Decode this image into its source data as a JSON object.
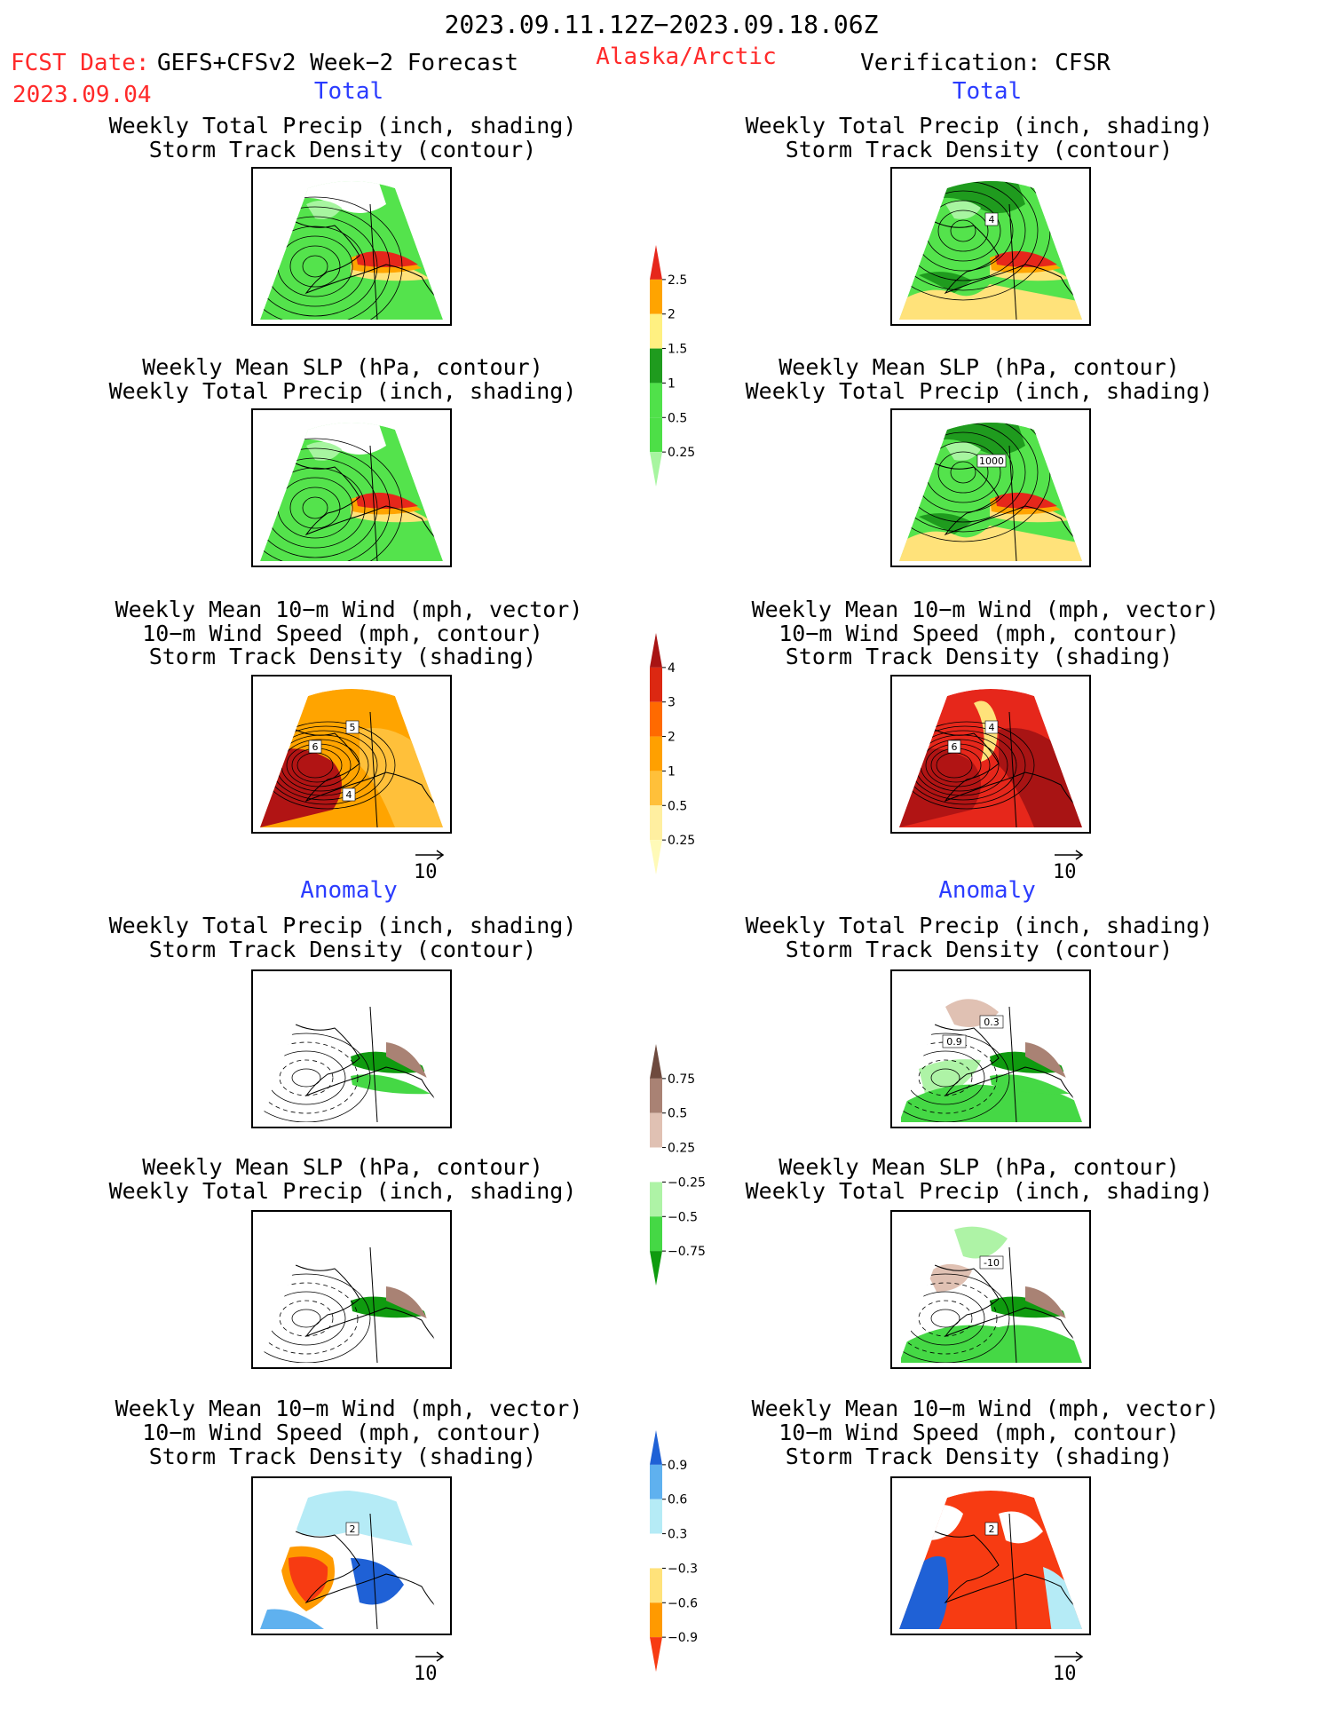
{
  "header": {
    "date_range": "2023.09.11.12Z−2023.09.18.06Z",
    "fcst_label": "FCST Date:",
    "fcst_model": "GEFS+CFSv2 Week−2 Forecast",
    "fcst_date": "2023.09.04",
    "region": "Alaska/Arctic",
    "verification": "Verification: CFSR"
  },
  "sections": {
    "total": "Total",
    "anomaly": "Anomaly"
  },
  "captions": {
    "precip_storm": [
      "Weekly Total Precip (inch, shading)",
      "Storm Track Density (contour)"
    ],
    "slp_precip": [
      "Weekly Mean SLP (hPa, contour)",
      "Weekly Total Precip (inch, shading)"
    ],
    "wind_storm": [
      "Weekly Mean 10−m Wind (mph, vector)",
      "10−m Wind Speed (mph, contour)",
      "Storm Track Density (shading)"
    ]
  },
  "panel_labels": {
    "fc_wind_total": [
      "5",
      "6",
      "4"
    ],
    "ver_precip_total": [
      "4"
    ],
    "ver_slp_total": [
      "1000"
    ],
    "ver_wind_total": [
      "4",
      "6"
    ],
    "ver_precip_anom": [
      "0.3",
      "0.9"
    ],
    "ver_slp_anom": [
      "-10"
    ],
    "fc_wind_anom": [
      "2"
    ],
    "ver_wind_anom": [
      "2"
    ]
  },
  "vector_ref": "10",
  "colorbars": {
    "precip": {
      "labels": [
        "0.25",
        "0.5",
        "1",
        "1.5",
        "2",
        "2.5"
      ],
      "colors": [
        "#a7f5a0",
        "#4ddf47",
        "#50e14a",
        "#1f9b1e",
        "#fff081",
        "#ffa400",
        "#e6271b"
      ]
    },
    "storm": {
      "labels": [
        "0.25",
        "0.5",
        "1",
        "2",
        "3",
        "4"
      ],
      "colors": [
        "#fffab8",
        "#ffefa0",
        "#ffc03a",
        "#ffa000",
        "#ff6a00",
        "#dc2812",
        "#a81414"
      ]
    },
    "precip_anom": {
      "labels": [
        "0.75",
        "0.5",
        "0.25",
        "−0.25",
        "−0.5",
        "−0.75"
      ],
      "colors": [
        "#0f9b0f",
        "#45d845",
        "#aef3a6",
        "#ffffff",
        "#e0c1b3",
        "#a98274",
        "#6e4a3e"
      ]
    },
    "storm_anom": {
      "labels": [
        "0.9",
        "0.6",
        "0.3",
        "−0.3",
        "−0.6",
        "−0.9"
      ],
      "colors": [
        "#f73b12",
        "#ff9a00",
        "#ffe27a",
        "#ffffff",
        "#b5ebf6",
        "#5fb1ef",
        "#1f61d6"
      ]
    }
  }
}
